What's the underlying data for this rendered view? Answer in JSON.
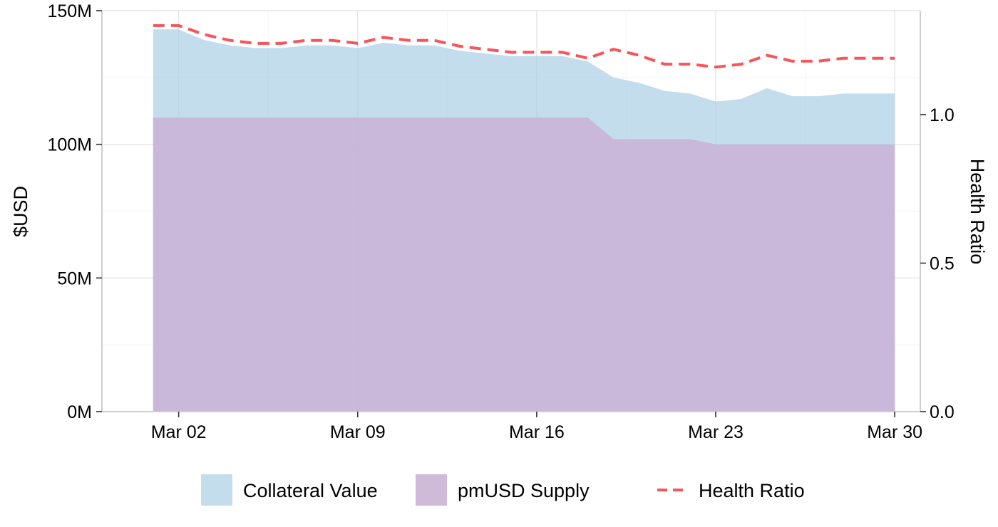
{
  "chart_data": {
    "type": "area",
    "ylabel_left": "$USD",
    "ylabel_right": "Health Ratio",
    "x_tick_labels": [
      "Mar 02",
      "Mar 09",
      "Mar 16",
      "Mar 23",
      "Mar 30"
    ],
    "x_tick_dates": [
      "2025-03-02",
      "2025-03-09",
      "2025-03-16",
      "2025-03-23",
      "2025-03-30"
    ],
    "xlim": [
      "2025-02-27",
      "2025-03-31"
    ],
    "y_left_ticks": [
      "0M",
      "50M",
      "100M",
      "150M"
    ],
    "y_left_tick_values": [
      0,
      50,
      100,
      150
    ],
    "y_left_lim": [
      0,
      150
    ],
    "y_left_unit": "M",
    "y_right_ticks": [
      "0.0",
      "0.5",
      "1.0"
    ],
    "y_right_tick_values": [
      0,
      0.5,
      1.0
    ],
    "y_right_lim": [
      0,
      1.35
    ],
    "grid": true,
    "legend_position": "bottom",
    "x": [
      "2025-03-01",
      "2025-03-02",
      "2025-03-03",
      "2025-03-04",
      "2025-03-05",
      "2025-03-06",
      "2025-03-07",
      "2025-03-08",
      "2025-03-09",
      "2025-03-10",
      "2025-03-11",
      "2025-03-12",
      "2025-03-13",
      "2025-03-14",
      "2025-03-15",
      "2025-03-16",
      "2025-03-17",
      "2025-03-18",
      "2025-03-19",
      "2025-03-20",
      "2025-03-21",
      "2025-03-22",
      "2025-03-23",
      "2025-03-24",
      "2025-03-25",
      "2025-03-26",
      "2025-03-27",
      "2025-03-28",
      "2025-03-29",
      "2025-03-30"
    ],
    "series": [
      {
        "name": "Collateral Value",
        "kind": "area",
        "axis": "left",
        "color": "#a6cde3",
        "values": [
          143,
          143,
          139,
          137,
          136,
          136,
          137,
          137,
          136,
          138,
          137,
          137,
          135,
          134,
          133,
          133,
          133,
          131,
          125,
          123,
          120,
          119,
          116,
          117,
          121,
          118,
          118,
          119,
          119,
          119
        ]
      },
      {
        "name": "pmUSD Supply",
        "kind": "area",
        "axis": "left",
        "color": "#cab2d6",
        "values": [
          110,
          110,
          110,
          110,
          110,
          110,
          110,
          110,
          110,
          110,
          110,
          110,
          110,
          110,
          110,
          110,
          110,
          110,
          102,
          102,
          102,
          102,
          100,
          100,
          100,
          100,
          100,
          100,
          100,
          100
        ]
      },
      {
        "name": "Health Ratio",
        "kind": "line",
        "axis": "right",
        "color": "#f8545a",
        "values": [
          1.3,
          1.3,
          1.27,
          1.25,
          1.24,
          1.24,
          1.25,
          1.25,
          1.24,
          1.26,
          1.25,
          1.25,
          1.23,
          1.22,
          1.21,
          1.21,
          1.21,
          1.19,
          1.22,
          1.2,
          1.17,
          1.17,
          1.16,
          1.17,
          1.2,
          1.18,
          1.18,
          1.19,
          1.19,
          1.19
        ]
      }
    ]
  }
}
